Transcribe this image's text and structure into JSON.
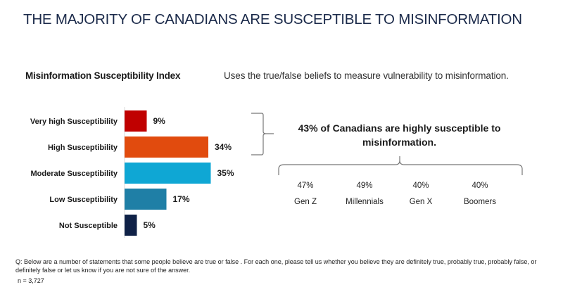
{
  "header": {
    "title": "THE MAJORITY OF CANADIANS ARE SUSCEPTIBLE TO MISINFORMATION",
    "subtitle": "Misinformation Susceptibility Index",
    "description": "Uses the true/false beliefs to measure vulnerability to misinformation."
  },
  "chart_data": {
    "type": "bar",
    "orientation": "horizontal",
    "title": "Misinformation Susceptibility Index",
    "categories": [
      "Very high Susceptibility",
      "High Susceptibility",
      "Moderate Susceptibility",
      "Low Susceptibility",
      "Not Susceptible"
    ],
    "values": [
      9,
      34,
      35,
      17,
      5
    ],
    "value_labels": [
      "9%",
      "34%",
      "35%",
      "17%",
      "5%"
    ],
    "colors": [
      "#c00000",
      "#e14b0e",
      "#0fa7d4",
      "#1f7fa6",
      "#0f2147"
    ],
    "unit": "%",
    "xlim": [
      0,
      40
    ],
    "grid": false,
    "xlabel": "",
    "ylabel": ""
  },
  "callout": {
    "text": "43%  of Canadians are highly susceptible to misinformation.",
    "generations": [
      {
        "value": "47%",
        "label": "Gen Z"
      },
      {
        "value": "49%",
        "label": "Millennials"
      },
      {
        "value": "40%",
        "label": "Gen X"
      },
      {
        "value": "40%",
        "label": "Boomers"
      }
    ]
  },
  "footnote": {
    "question": "Q: Below are a number of statements that some people believe are true or false . For each one, please tell us whether you believe they are definitely true, probably true, probably false, or definitely false or let us know if you are not sure of the answer.",
    "sample": "n = 3,727"
  }
}
